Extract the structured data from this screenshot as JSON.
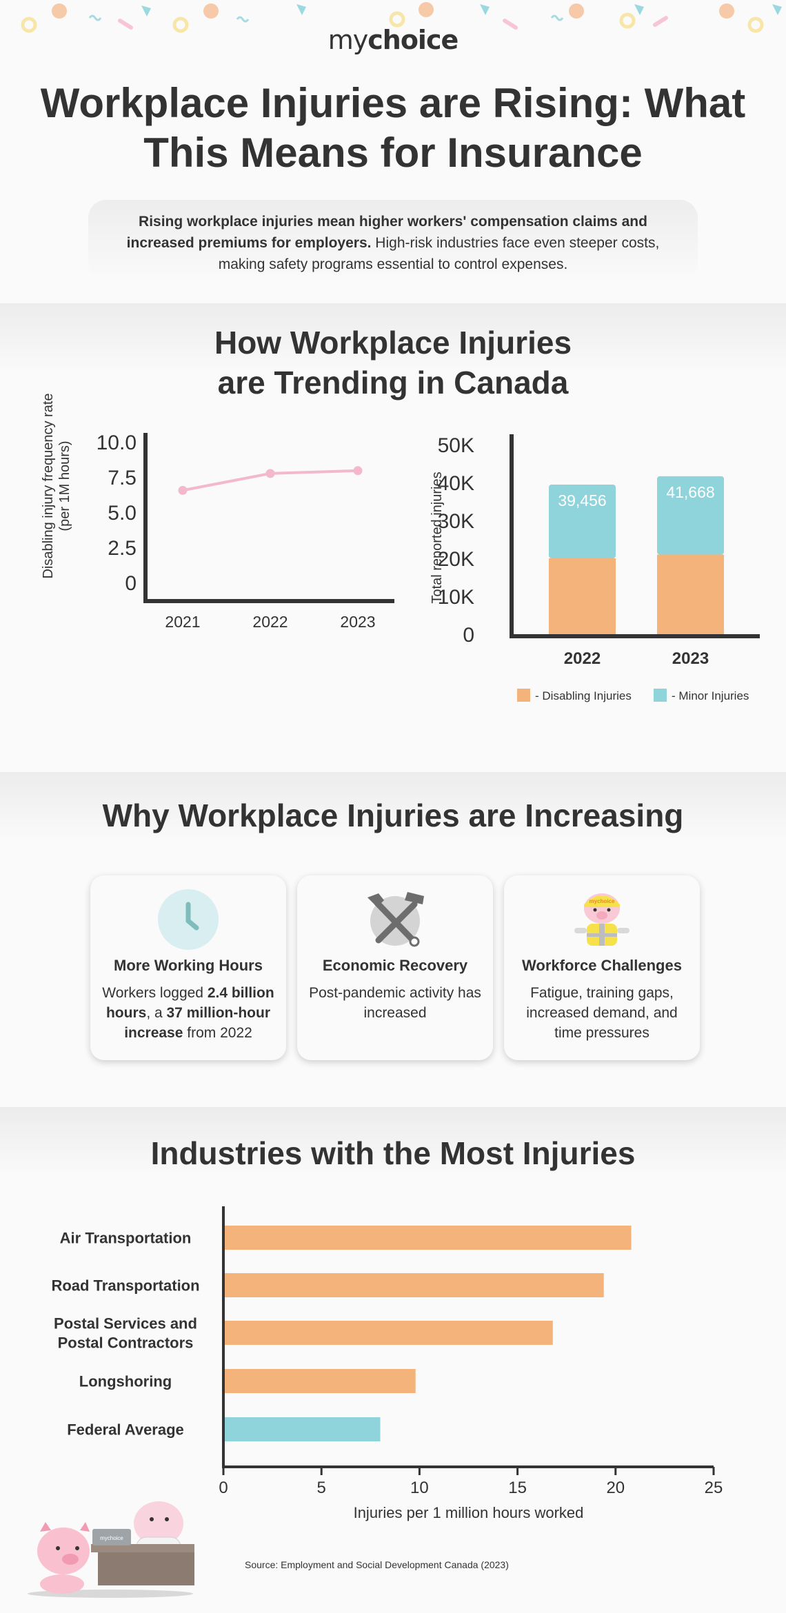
{
  "brand": {
    "logo_light": "my",
    "logo_bold": "choice"
  },
  "title": "Workplace Injuries are Rising: What This Means for Insurance",
  "intro": {
    "bold": "Rising workplace injuries mean higher workers' compensation claims and increased premiums for employers.",
    "rest": " High-risk industries face even steeper costs, making safety programs essential to control expenses."
  },
  "colors": {
    "pink_line": "#f4b8cd",
    "orange": "#f3b37b",
    "teal": "#8fd3db",
    "axis": "#333333"
  },
  "trend_section": {
    "title": "How Workplace Injuries are Trending in Canada"
  },
  "reasons_section": {
    "title": "Why Workplace Injuries are Increasing",
    "cards": [
      {
        "icon": "clock-icon",
        "title": "More Working Hours",
        "text_pre": "Workers logged ",
        "text_b1": "2.4 billion hours",
        "text_mid": ", a ",
        "text_b2": "37 million-hour increase",
        "text_post": " from 2022"
      },
      {
        "icon": "tools-icon",
        "title": "Economic Recovery",
        "text": "Post-pandemic activity has increased"
      },
      {
        "icon": "worker-pig-icon",
        "badge": "mychoice",
        "title": "Workforce Challenges",
        "text": "Fatigue, training gaps, increased demand, and time pressures"
      }
    ]
  },
  "industries_section": {
    "title": "Industries with the Most Injuries"
  },
  "source": "Source: Employment and Social Development Canada (2023)",
  "mascot": {
    "laptop_label": "mychoice"
  },
  "chart_data": [
    {
      "type": "line",
      "x": [
        "2021",
        "2022",
        "2023"
      ],
      "series": [
        {
          "values": [
            6.6,
            7.8,
            8.0
          ]
        }
      ],
      "ylabel": "Disabling injury frequency rate (per 1M hours)",
      "ylim": [
        0,
        10
      ],
      "yticks": [
        "0",
        "2.5",
        "5.0",
        "7.5",
        "10.0"
      ],
      "grid": false
    },
    {
      "type": "bar",
      "stacked": true,
      "categories": [
        "2022",
        "2023"
      ],
      "series": [
        {
          "name": "- Disabling Injuries",
          "values": [
            20000,
            21000
          ]
        },
        {
          "name": "- Minor Injuries",
          "values": [
            19456,
            20668
          ]
        }
      ],
      "totals": [
        "39,456",
        "41,668"
      ],
      "ylabel": "Total reported injuries",
      "ylim": [
        0,
        50000
      ],
      "yticks": [
        "0",
        "10K",
        "20K",
        "30K",
        "40K",
        "50K"
      ],
      "legend": "bottom"
    },
    {
      "type": "bar",
      "orientation": "horizontal",
      "categories": [
        "Air Transportation",
        "Road Transportation",
        "Postal Services and Postal Contractors",
        "Longshoring",
        "Federal Average"
      ],
      "values": [
        20.8,
        19.4,
        16.8,
        9.8,
        8.0
      ],
      "highlight": "Federal Average",
      "xlabel": "Injuries per 1 million hours worked",
      "xlim": [
        0,
        25
      ],
      "xticks": [
        "0",
        "5",
        "10",
        "15",
        "20",
        "25"
      ]
    }
  ]
}
